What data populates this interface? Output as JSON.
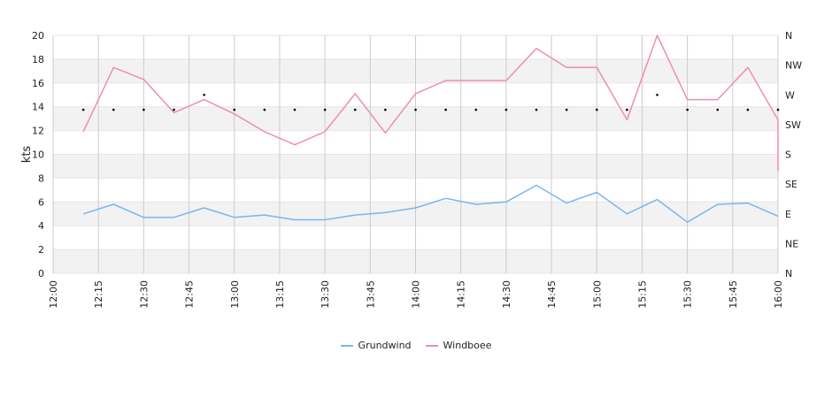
{
  "chart_data": {
    "type": "line",
    "ylabel": "kts",
    "ylim": [
      0,
      20
    ],
    "y_ticks": [
      "0",
      "2",
      "4",
      "6",
      "8",
      "10",
      "12",
      "14",
      "16",
      "18",
      "20"
    ],
    "x_tick_labels": [
      "12:00",
      "12:15",
      "12:30",
      "12:45",
      "13:00",
      "13:15",
      "13:30",
      "13:45",
      "14:00",
      "14:15",
      "14:30",
      "14:45",
      "15:00",
      "15:15",
      "15:30",
      "15:45",
      "16:00"
    ],
    "x_start_minutes": 720,
    "x_end_minutes": 960,
    "times": [
      "12:10",
      "12:20",
      "12:30",
      "12:40",
      "12:50",
      "13:00",
      "13:10",
      "13:20",
      "13:30",
      "13:40",
      "13:50",
      "14:00",
      "14:10",
      "14:20",
      "14:30",
      "14:40",
      "14:50",
      "15:00",
      "15:10",
      "15:20",
      "15:30",
      "15:40",
      "15:50",
      "16:00"
    ],
    "series": [
      {
        "name": "Grundwind",
        "color": "#7cb5ec",
        "values": [
          5.0,
          5.8,
          4.7,
          4.7,
          5.5,
          4.7,
          4.9,
          4.5,
          4.5,
          4.9,
          5.1,
          5.5,
          6.3,
          5.8,
          6.0,
          7.4,
          5.9,
          6.8,
          5.0,
          6.2,
          4.3,
          5.8,
          5.9,
          4.8
        ]
      },
      {
        "name": "Windboee",
        "color": "#f08cb6",
        "values": [
          11.9,
          17.3,
          16.3,
          13.5,
          14.6,
          13.4,
          11.9,
          10.8,
          11.9,
          15.1,
          11.8,
          15.1,
          16.2,
          16.2,
          16.2,
          18.9,
          17.3,
          17.3,
          12.9,
          20.0,
          14.6,
          14.6,
          17.3,
          12.9
        ],
        "final_drop_value": 8.6
      }
    ],
    "direction_axis": {
      "labels": [
        "N",
        "NE",
        "E",
        "SE",
        "S",
        "SW",
        "W",
        "NW",
        "N"
      ],
      "range": [
        0,
        360
      ]
    },
    "wind_direction": {
      "color": "#000000",
      "values_deg": [
        247.5,
        247.5,
        247.5,
        247.5,
        270,
        247.5,
        247.5,
        247.5,
        247.5,
        247.5,
        247.5,
        247.5,
        247.5,
        247.5,
        247.5,
        247.5,
        247.5,
        247.5,
        247.5,
        270,
        247.5,
        247.5,
        247.5,
        247.5
      ]
    },
    "grid": true,
    "legend_position": "bottom-center"
  }
}
